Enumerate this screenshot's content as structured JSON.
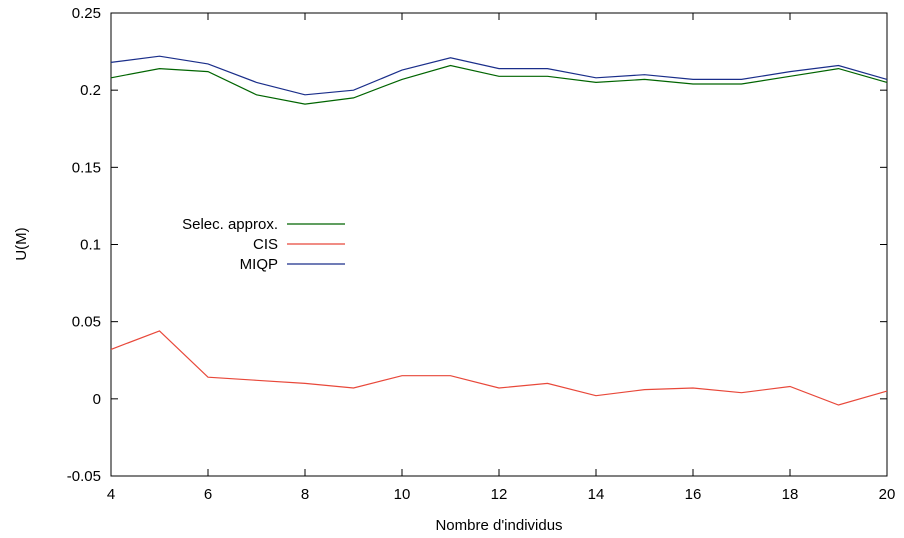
{
  "chart_data": {
    "type": "line",
    "xlabel": "Nombre d'individus",
    "ylabel": "U(M)",
    "xlim": [
      4,
      20
    ],
    "ylim": [
      -0.05,
      0.25
    ],
    "xticks": [
      4,
      6,
      8,
      10,
      12,
      14,
      16,
      18,
      20
    ],
    "yticks": [
      -0.05,
      0,
      0.05,
      0.1,
      0.15,
      0.2,
      0.25
    ],
    "xtick_labels": [
      "4",
      "6",
      "8",
      "10",
      "12",
      "14",
      "16",
      "18",
      "20"
    ],
    "ytick_labels": [
      "-0.05",
      "0",
      "0.05",
      "0.1",
      "0.15",
      "0.2",
      "0.25"
    ],
    "grid": false,
    "legend_position": "left-middle",
    "x": [
      4,
      5,
      6,
      7,
      8,
      9,
      10,
      11,
      12,
      13,
      14,
      15,
      16,
      17,
      18,
      19,
      20
    ],
    "series": [
      {
        "name": "Selec. approx.",
        "color": "#006400",
        "values": [
          0.208,
          0.214,
          0.212,
          0.197,
          0.191,
          0.195,
          0.207,
          0.216,
          0.209,
          0.209,
          0.205,
          0.207,
          0.204,
          0.204,
          0.209,
          0.214,
          0.205
        ]
      },
      {
        "name": "CIS",
        "color": "#e8483a",
        "values": [
          0.032,
          0.044,
          0.014,
          0.012,
          0.01,
          0.007,
          0.015,
          0.015,
          0.007,
          0.01,
          0.002,
          0.006,
          0.007,
          0.004,
          0.008,
          -0.004,
          0.005
        ]
      },
      {
        "name": "MIQP",
        "color": "#1a2e8a",
        "values": [
          0.218,
          0.222,
          0.217,
          0.205,
          0.197,
          0.2,
          0.213,
          0.221,
          0.214,
          0.214,
          0.208,
          0.21,
          0.207,
          0.207,
          0.212,
          0.216,
          0.207
        ]
      }
    ]
  }
}
